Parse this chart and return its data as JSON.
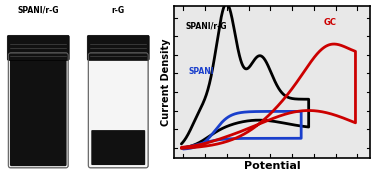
{
  "ylabel": "Current Density",
  "xlabel": "Potential",
  "label_spani_rg": "SPANI/r-G",
  "label_spani": "SPANI",
  "label_gc": "GC",
  "color_spani_rg": "#000000",
  "color_spani": "#1a3fcc",
  "color_gc": "#cc0000",
  "vial_left_label": "SPANI/r-G",
  "vial_right_label": "r-G",
  "linewidth": 2.0,
  "plot_bg": "#e8e8e8"
}
